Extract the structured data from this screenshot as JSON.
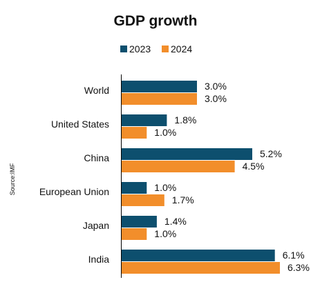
{
  "chart_data": {
    "type": "bar",
    "orientation": "horizontal",
    "title": "GDP growth",
    "source": "Source:IMF",
    "legend_position": "top",
    "categories": [
      "World",
      "United States",
      "China",
      "European Union",
      "Japan",
      "India"
    ],
    "series": [
      {
        "name": "2023",
        "color": "#0d4f6e",
        "values": [
          3.0,
          1.8,
          5.2,
          1.0,
          1.4,
          6.1
        ],
        "labels": [
          "3.0%",
          "1.8%",
          "5.2%",
          "1.0%",
          "1.4%",
          "6.1%"
        ]
      },
      {
        "name": "2024",
        "color": "#f28e2b",
        "values": [
          3.0,
          1.0,
          4.5,
          1.7,
          1.0,
          6.3
        ],
        "labels": [
          "3.0%",
          "1.0%",
          "4.5%",
          "1.7%",
          "1.0%",
          "6.3%"
        ]
      }
    ],
    "xlim": [
      0,
      6.3
    ],
    "grid": false
  }
}
